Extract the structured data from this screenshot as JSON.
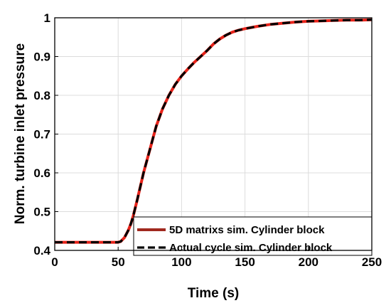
{
  "chart_data": {
    "type": "line",
    "xlabel": "Time (s)",
    "ylabel": "Norm. turbine inlet pressure",
    "xlim": [
      0,
      250
    ],
    "ylim": [
      0.4,
      1.0
    ],
    "xticks": [
      0,
      50,
      100,
      150,
      200,
      250
    ],
    "yticks": [
      0.4,
      0.5,
      0.6,
      0.7,
      0.8,
      0.9,
      1.0
    ],
    "xtick_labels": [
      "0",
      "50",
      "100",
      "150",
      "200",
      "250"
    ],
    "ytick_labels": [
      "0.4",
      "0.5",
      "0.6",
      "0.7",
      "0.8",
      "0.9",
      "1"
    ],
    "grid": true,
    "legend_position": "bottom-right",
    "series": [
      {
        "name": "5D matrixs sim. Cylinder block",
        "color": "#e8231a",
        "legend_color": "#a0281e",
        "style": "solid",
        "x": [
          0,
          10,
          20,
          30,
          40,
          50,
          52,
          55,
          58,
          60,
          62,
          65,
          70,
          75,
          80,
          85,
          90,
          95,
          100,
          105,
          110,
          115,
          120,
          125,
          130,
          135,
          140,
          145,
          150,
          160,
          170,
          180,
          190,
          200,
          210,
          220,
          230,
          240,
          250
        ],
        "y": [
          0.421,
          0.421,
          0.421,
          0.421,
          0.421,
          0.421,
          0.423,
          0.433,
          0.452,
          0.468,
          0.49,
          0.53,
          0.6,
          0.66,
          0.72,
          0.765,
          0.8,
          0.828,
          0.85,
          0.868,
          0.885,
          0.9,
          0.915,
          0.932,
          0.945,
          0.955,
          0.963,
          0.968,
          0.972,
          0.978,
          0.983,
          0.986,
          0.989,
          0.991,
          0.992,
          0.993,
          0.994,
          0.994,
          0.995
        ]
      },
      {
        "name": "Actual cycle sim. Cylinder block",
        "color": "#000000",
        "legend_color": "#000000",
        "style": "dashed",
        "x": [
          0,
          10,
          20,
          30,
          40,
          50,
          52,
          55,
          58,
          60,
          62,
          65,
          70,
          75,
          80,
          85,
          90,
          95,
          100,
          105,
          110,
          115,
          120,
          125,
          130,
          135,
          140,
          145,
          150,
          160,
          170,
          180,
          190,
          200,
          210,
          220,
          230,
          240,
          250
        ],
        "y": [
          0.421,
          0.421,
          0.421,
          0.421,
          0.421,
          0.421,
          0.423,
          0.433,
          0.452,
          0.468,
          0.49,
          0.53,
          0.6,
          0.66,
          0.72,
          0.765,
          0.8,
          0.828,
          0.85,
          0.868,
          0.885,
          0.9,
          0.915,
          0.932,
          0.945,
          0.955,
          0.963,
          0.968,
          0.972,
          0.978,
          0.983,
          0.986,
          0.989,
          0.991,
          0.992,
          0.993,
          0.994,
          0.994,
          0.995
        ]
      }
    ]
  }
}
